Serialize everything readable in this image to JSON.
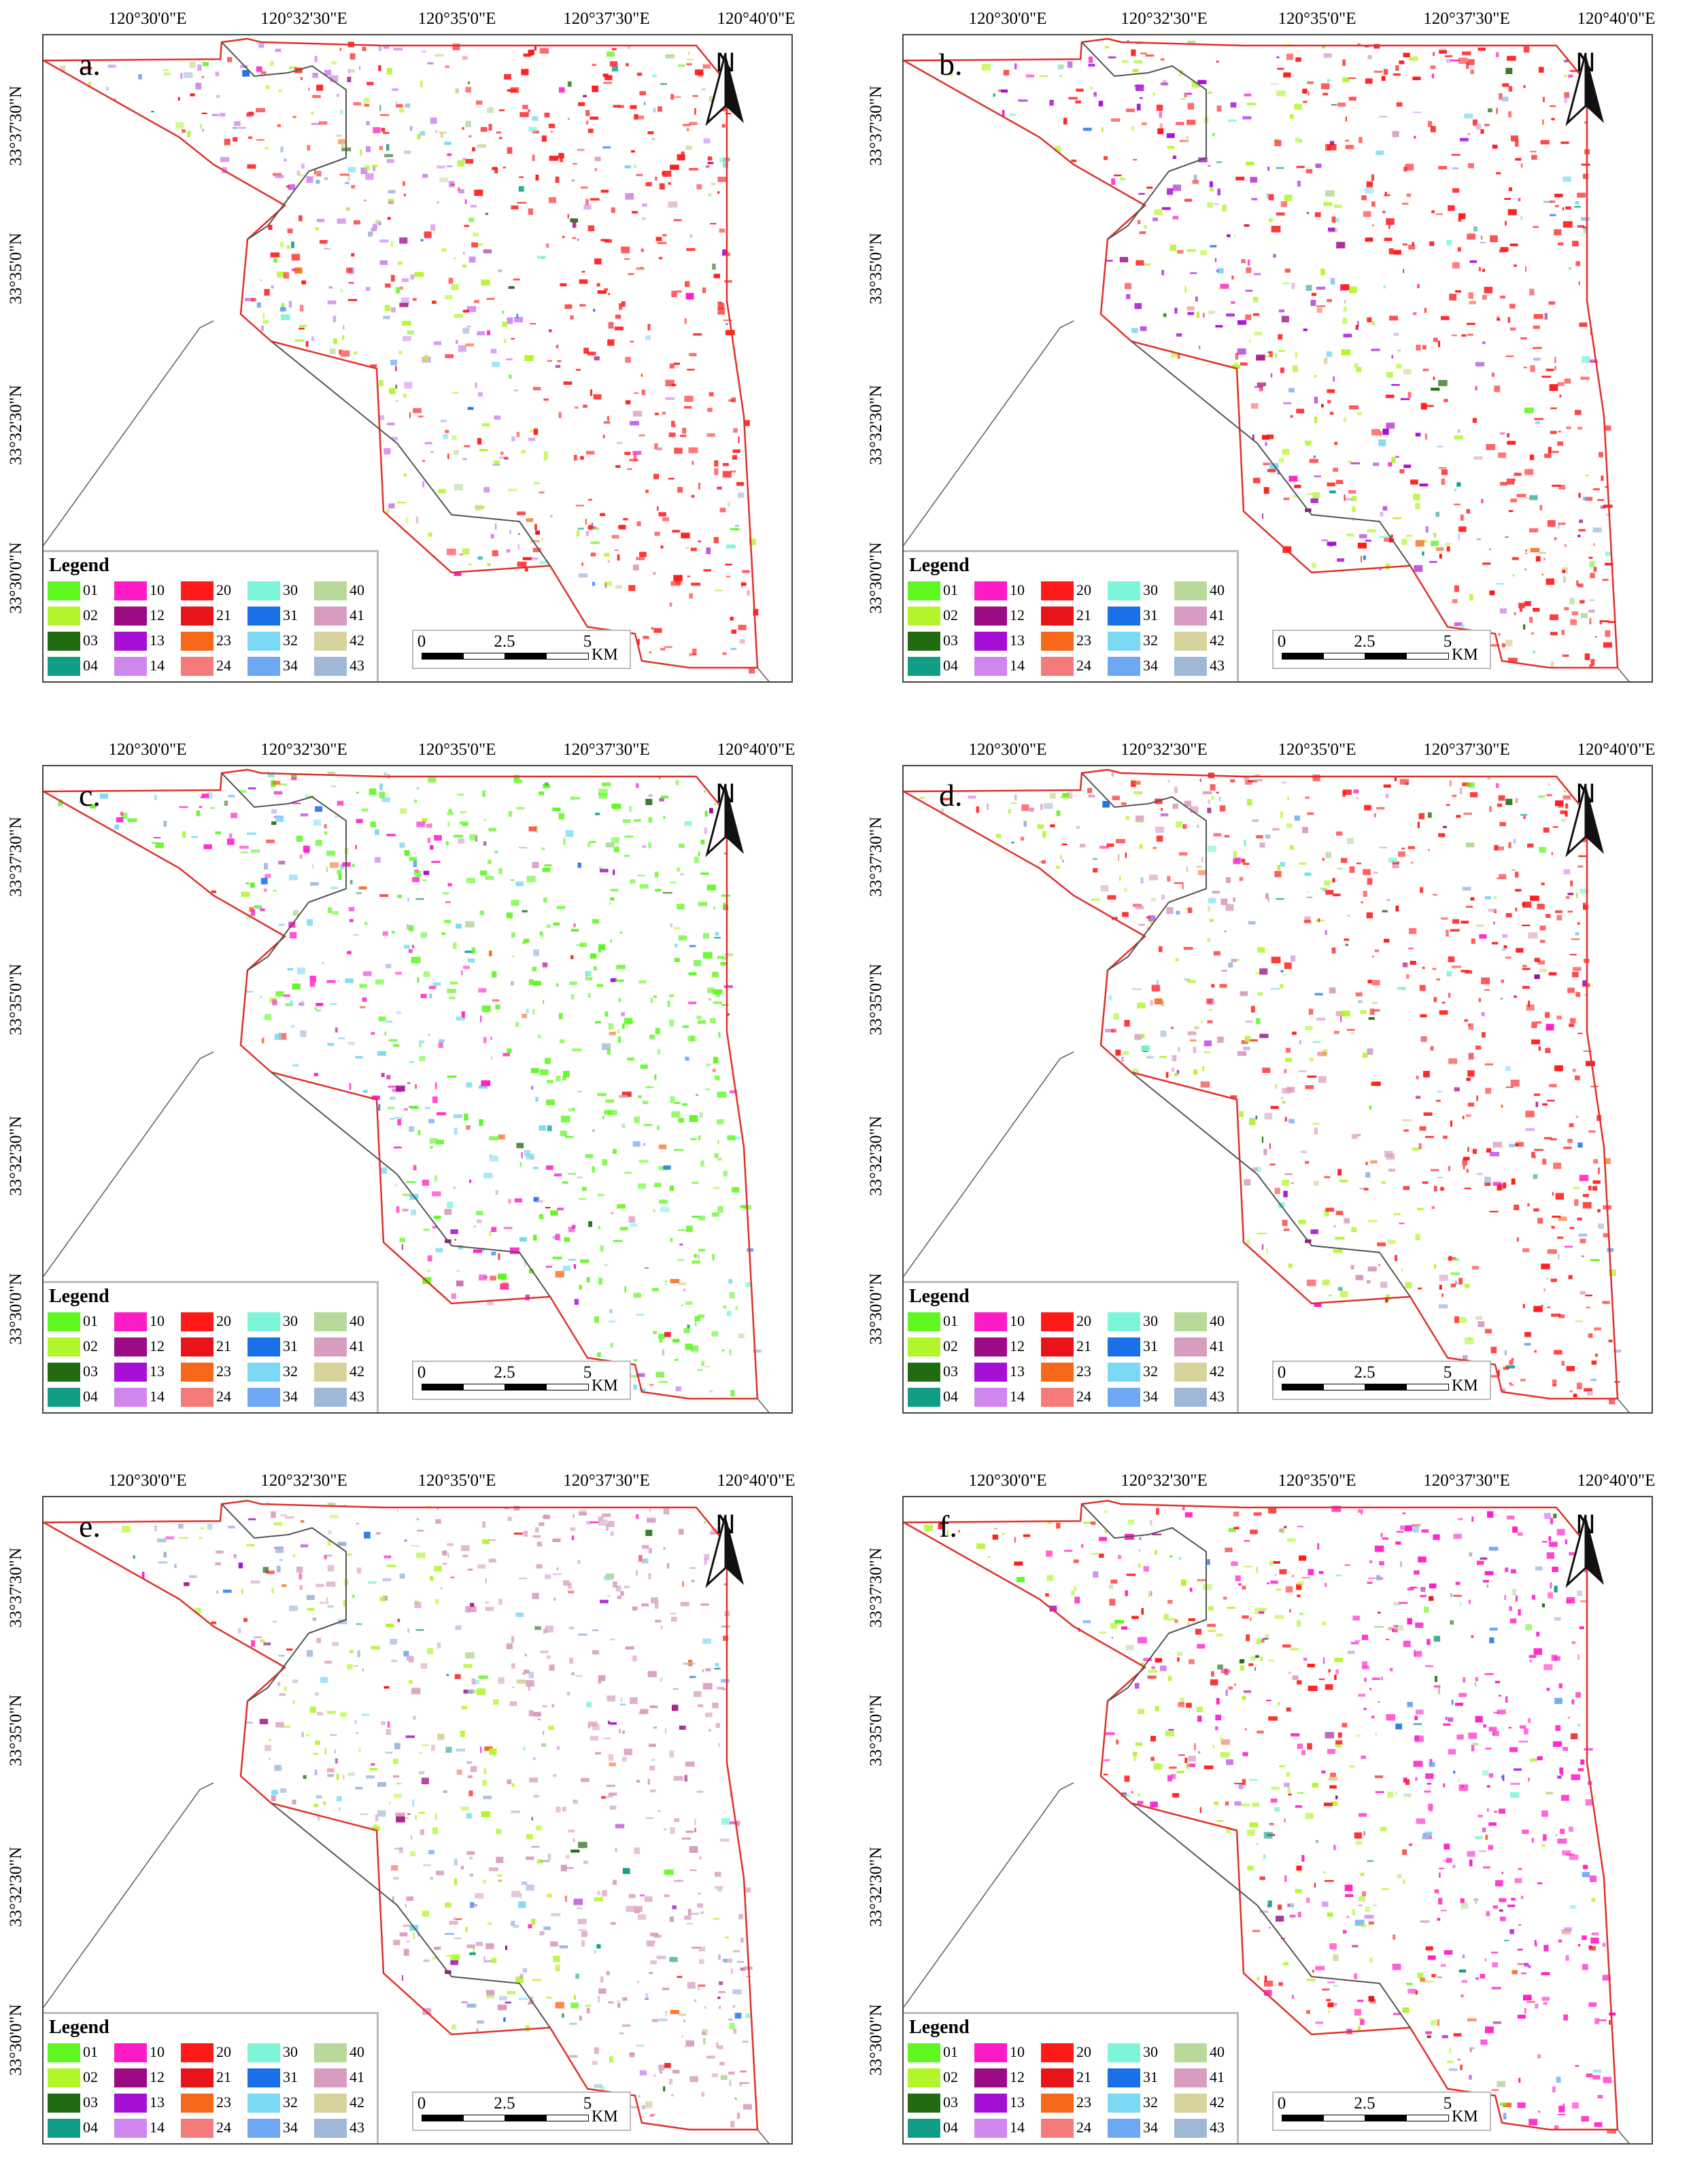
{
  "lon_labels": [
    "120°30'0\"E",
    "120°32'30\"E",
    "120°35'0\"E",
    "120°37'30\"E",
    "120°40'0\"E"
  ],
  "lat_labels": [
    "33°37'30\"N",
    "33°35'0\"N",
    "33°32'30\"N",
    "33°30'0\"N"
  ],
  "north_label": "N",
  "legend": {
    "title": "Legend",
    "items": [
      {
        "code": "01",
        "color": "#5ef720"
      },
      {
        "code": "10",
        "color": "#ff1cc6"
      },
      {
        "code": "20",
        "color": "#ff1a1a"
      },
      {
        "code": "30",
        "color": "#7cf5d8"
      },
      {
        "code": "40",
        "color": "#b8d99a"
      },
      {
        "code": "02",
        "color": "#b2f52a"
      },
      {
        "code": "12",
        "color": "#9c0a84"
      },
      {
        "code": "21",
        "color": "#e8141a"
      },
      {
        "code": "31",
        "color": "#1a70e8"
      },
      {
        "code": "41",
        "color": "#d89cc0"
      },
      {
        "code": "03",
        "color": "#236b12"
      },
      {
        "code": "13",
        "color": "#a60fd6"
      },
      {
        "code": "23",
        "color": "#f5681a"
      },
      {
        "code": "32",
        "color": "#7ad8f2"
      },
      {
        "code": "42",
        "color": "#d8d39c"
      },
      {
        "code": "04",
        "color": "#129e86"
      },
      {
        "code": "14",
        "color": "#cf86ef"
      },
      {
        "code": "24",
        "color": "#f57a7a"
      },
      {
        "code": "34",
        "color": "#6ea8f2"
      },
      {
        "code": "43",
        "color": "#a0b8d8"
      }
    ]
  },
  "scale": {
    "labels": [
      "0",
      "2.5",
      "5"
    ],
    "unit": "KM"
  },
  "panels": [
    {
      "label": "a.",
      "dominant": [
        "#ff1a1a",
        "#b2f52a",
        "#cf86ef"
      ]
    },
    {
      "label": "b.",
      "dominant": [
        "#ff1a1a",
        "#b2f52a",
        "#a60fd6"
      ]
    },
    {
      "label": "c.",
      "dominant": [
        "#5ef720",
        "#ff1cc6",
        "#7ad8f2"
      ]
    },
    {
      "label": "d.",
      "dominant": [
        "#ff1a1a",
        "#b2f52a",
        "#d89cc0"
      ]
    },
    {
      "label": "e.",
      "dominant": [
        "#d89cc0",
        "#b2f52a",
        "#a0b8d8"
      ]
    },
    {
      "label": "f.",
      "dominant": [
        "#ff1cc6",
        "#b2f52a",
        "#ff1a1a"
      ]
    }
  ]
}
